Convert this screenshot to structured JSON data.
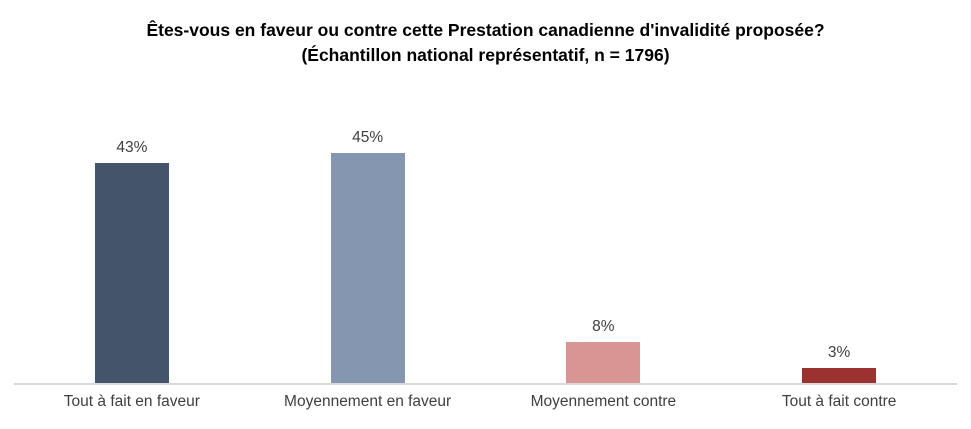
{
  "chart_data": {
    "type": "bar",
    "title": "Êtes-vous en faveur ou contre cette Prestation canadienne d'invalidité proposée?",
    "subtitle": "(Échantillon national représentatif, n = 1796)",
    "categories": [
      "Tout à fait en faveur",
      "Moyennement en faveur",
      "Moyennement contre",
      "Tout à fait contre"
    ],
    "values": [
      43,
      45,
      8,
      3
    ],
    "value_labels": [
      "43%",
      "45%",
      "8%",
      "3%"
    ],
    "bar_colors": [
      "#44546A",
      "#8496B0",
      "#D99594",
      "#9C3230"
    ],
    "ylim": [
      0,
      50
    ],
    "xlabel": "",
    "ylabel": "",
    "grid": false,
    "legend": false,
    "axis_line_color": "#D9D9D9",
    "text_color": "#404040"
  }
}
